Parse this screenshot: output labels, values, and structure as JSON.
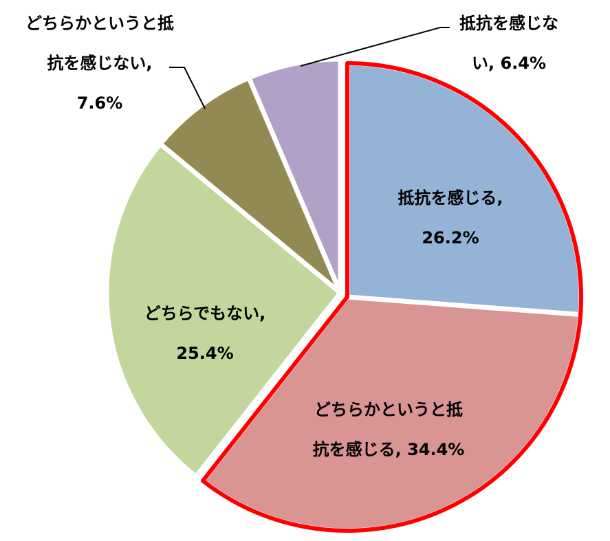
{
  "chart_data": {
    "type": "pie",
    "categories": [
      "抵抗を感じる",
      "どちらかというと抵抗を感じる",
      "どちらでもない",
      "どちらかというと抵抗を感じない",
      "抵抗を感じない"
    ],
    "values": [
      26.2,
      34.4,
      25.4,
      7.6,
      6.4
    ],
    "unit": "%",
    "colors": [
      "#95b3d7",
      "#d99594",
      "#c3d69b",
      "#938953",
      "#b2a1c7"
    ],
    "highlight_color": "#ff0000",
    "highlighted": [
      "抵抗を感じる",
      "どちらかというと抵抗を感じる"
    ],
    "labels": [
      {
        "lines": [
          "抵抗を感じる,",
          "26.2%"
        ]
      },
      {
        "lines": [
          "どちらかというと抵",
          "抗を感じる, 34.4%"
        ]
      },
      {
        "lines": [
          "どちらでもない,",
          "25.4%"
        ]
      },
      {
        "lines": [
          "どちらかというと抵",
          "抗を感じない,",
          "7.6%"
        ]
      },
      {
        "lines": [
          "抵抗を感じな",
          "い, 6.4%"
        ]
      }
    ],
    "legend": "none"
  }
}
